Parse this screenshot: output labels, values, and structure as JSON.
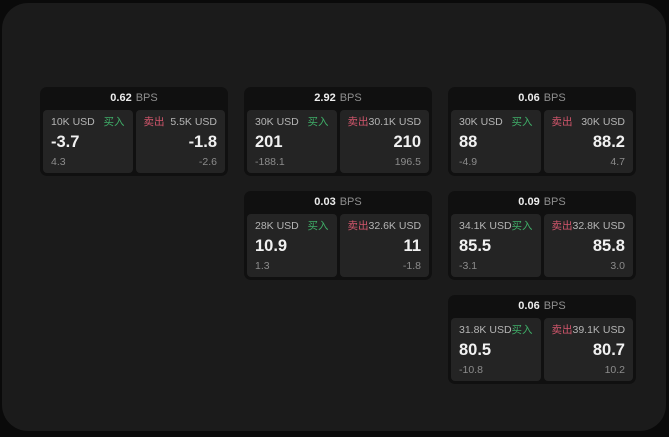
{
  "labels": {
    "bps_unit": "BPS",
    "buy": "买入",
    "sell": "卖出"
  },
  "colors": {
    "buy": "#3fae68",
    "sell": "#d2566c",
    "page_bg": "#1b1b1b",
    "card_bg": "#101010",
    "panel_bg": "#242424"
  },
  "cards": [
    {
      "row": 0,
      "col": 0,
      "bps": "0.62",
      "buy": {
        "size": "10K USD",
        "value": "-3.7",
        "sub": "4.3"
      },
      "sell": {
        "size": "5.5K USD",
        "value": "-1.8",
        "sub": "-2.6"
      }
    },
    {
      "row": 0,
      "col": 1,
      "bps": "2.92",
      "buy": {
        "size": "30K USD",
        "value": "201",
        "sub": "-188.1"
      },
      "sell": {
        "size": "30.1K USD",
        "value": "210",
        "sub": "196.5"
      }
    },
    {
      "row": 0,
      "col": 2,
      "bps": "0.06",
      "buy": {
        "size": "30K USD",
        "value": "88",
        "sub": "-4.9"
      },
      "sell": {
        "size": "30K USD",
        "value": "88.2",
        "sub": "4.7"
      }
    },
    {
      "row": 1,
      "col": 1,
      "bps": "0.03",
      "buy": {
        "size": "28K USD",
        "value": "10.9",
        "sub": "1.3"
      },
      "sell": {
        "size": "32.6K USD",
        "value": "11",
        "sub": "-1.8"
      }
    },
    {
      "row": 1,
      "col": 2,
      "bps": "0.09",
      "buy": {
        "size": "34.1K USD",
        "value": "85.5",
        "sub": "-3.1"
      },
      "sell": {
        "size": "32.8K USD",
        "value": "85.8",
        "sub": "3.0"
      }
    },
    {
      "row": 2,
      "col": 2,
      "bps": "0.06",
      "buy": {
        "size": "31.8K USD",
        "value": "80.5",
        "sub": "-10.8"
      },
      "sell": {
        "size": "39.1K USD",
        "value": "80.7",
        "sub": "10.2"
      }
    }
  ]
}
